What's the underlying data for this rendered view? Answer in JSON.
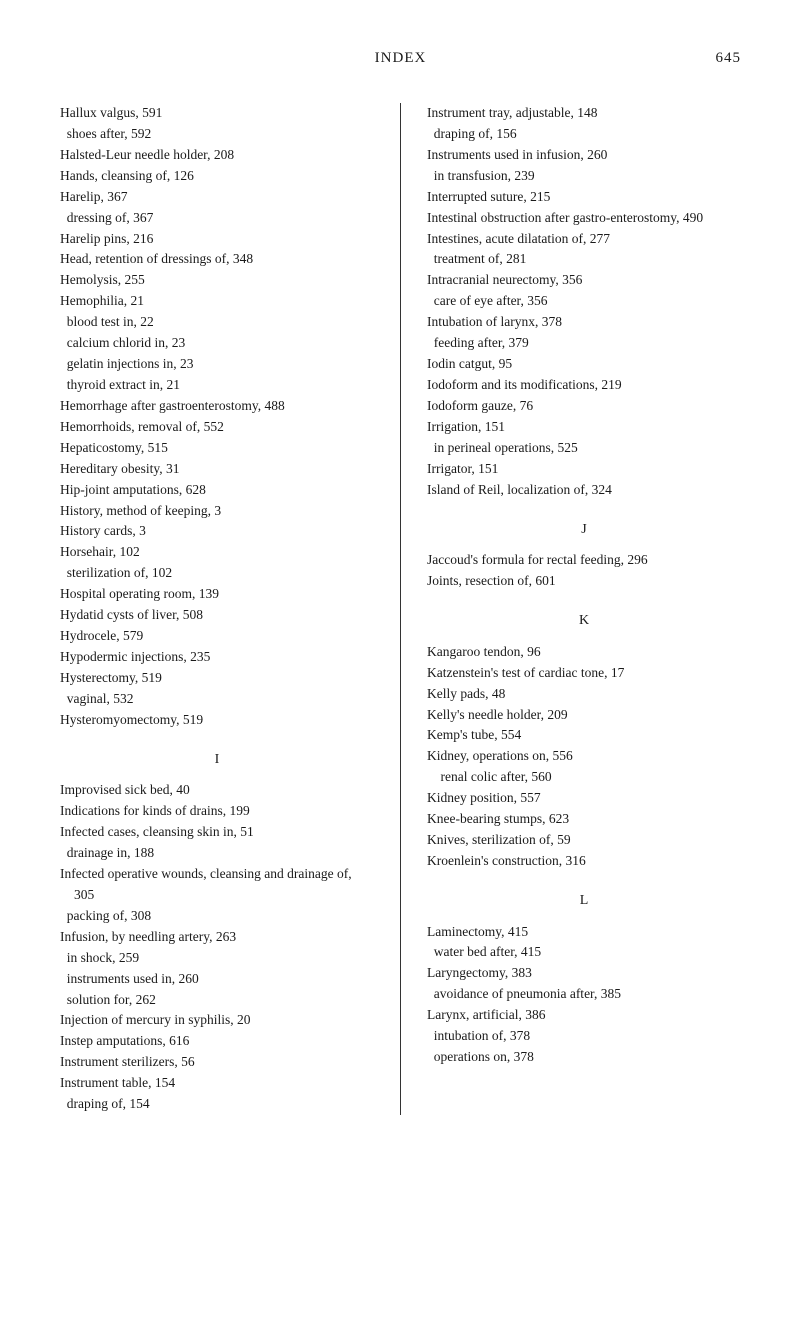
{
  "header": {
    "title": "INDEX",
    "page_number": "645"
  },
  "left_column": {
    "block1": [
      "Hallux valgus, 591",
      "  shoes after, 592",
      "Halsted-Leur needle holder, 208",
      "Hands, cleansing of, 126",
      "Harelip, 367",
      "  dressing of, 367",
      "Harelip pins, 216",
      "Head, retention of dressings of, 348",
      "Hemolysis, 255",
      "Hemophilia, 21",
      "  blood test in, 22",
      "  calcium chlorid in, 23",
      "  gelatin injections in, 23",
      "  thyroid extract in, 21",
      "Hemorrhage after gastroenterostomy, 488",
      "Hemorrhoids, removal of, 552",
      "Hepaticostomy, 515",
      "Hereditary obesity, 31",
      "Hip-joint amputations, 628",
      "History, method of keeping, 3",
      "History cards, 3",
      "Horsehair, 102",
      "  sterilization of, 102",
      "Hospital operating room, 139",
      "Hydatid cysts of liver, 508",
      "Hydrocele, 579",
      "Hypodermic injections, 235",
      "Hysterectomy, 519",
      "  vaginal, 532",
      "Hysteromyomectomy, 519"
    ],
    "section_I": "I",
    "block2": [
      "Improvised sick bed, 40",
      "Indications for kinds of drains, 199",
      "Infected cases, cleansing skin in, 51",
      "  drainage in, 188",
      "Infected operative wounds, cleansing and drainage of, 305",
      "  packing of, 308",
      "Infusion, by needling artery, 263",
      "  in shock, 259",
      "  instruments used in, 260",
      "  solution for, 262",
      "Injection of mercury in syphilis, 20",
      "Instep amputations, 616",
      "Instrument sterilizers, 56",
      "Instrument table, 154",
      "  draping of, 154"
    ]
  },
  "right_column": {
    "block1": [
      "Instrument tray, adjustable, 148",
      "  draping of, 156",
      "Instruments used in infusion, 260",
      "  in transfusion, 239",
      "Interrupted suture, 215",
      "Intestinal obstruction after gastro-enterostomy, 490",
      "Intestines, acute dilatation of, 277",
      "  treatment of, 281",
      "Intracranial neurectomy, 356",
      "  care of eye after, 356",
      "Intubation of larynx, 378",
      "  feeding after, 379",
      "Iodin catgut, 95",
      "Iodoform and its modifications, 219",
      "Iodoform gauze, 76",
      "Irrigation, 151",
      "  in perineal operations, 525",
      "Irrigator, 151",
      "Island of Reil, localization of, 324"
    ],
    "section_J": "J",
    "block2": [
      "Jaccoud's formula for rectal feeding, 296",
      "Joints, resection of, 601"
    ],
    "section_K": "K",
    "block3": [
      "Kangaroo tendon, 96",
      "Katzenstein's test of cardiac tone, 17",
      "Kelly pads, 48",
      "Kelly's needle holder, 209",
      "Kemp's tube, 554",
      "Kidney, operations on, 556",
      "    renal colic after, 560",
      "Kidney position, 557",
      "Knee-bearing stumps, 623",
      "Knives, sterilization of, 59",
      "Kroenlein's construction, 316"
    ],
    "section_L": "L",
    "block4": [
      "Laminectomy, 415",
      "  water bed after, 415",
      "Laryngectomy, 383",
      "  avoidance of pneumonia after, 385",
      "Larynx, artificial, 386",
      "  intubation of, 378",
      "  operations on, 378"
    ]
  }
}
